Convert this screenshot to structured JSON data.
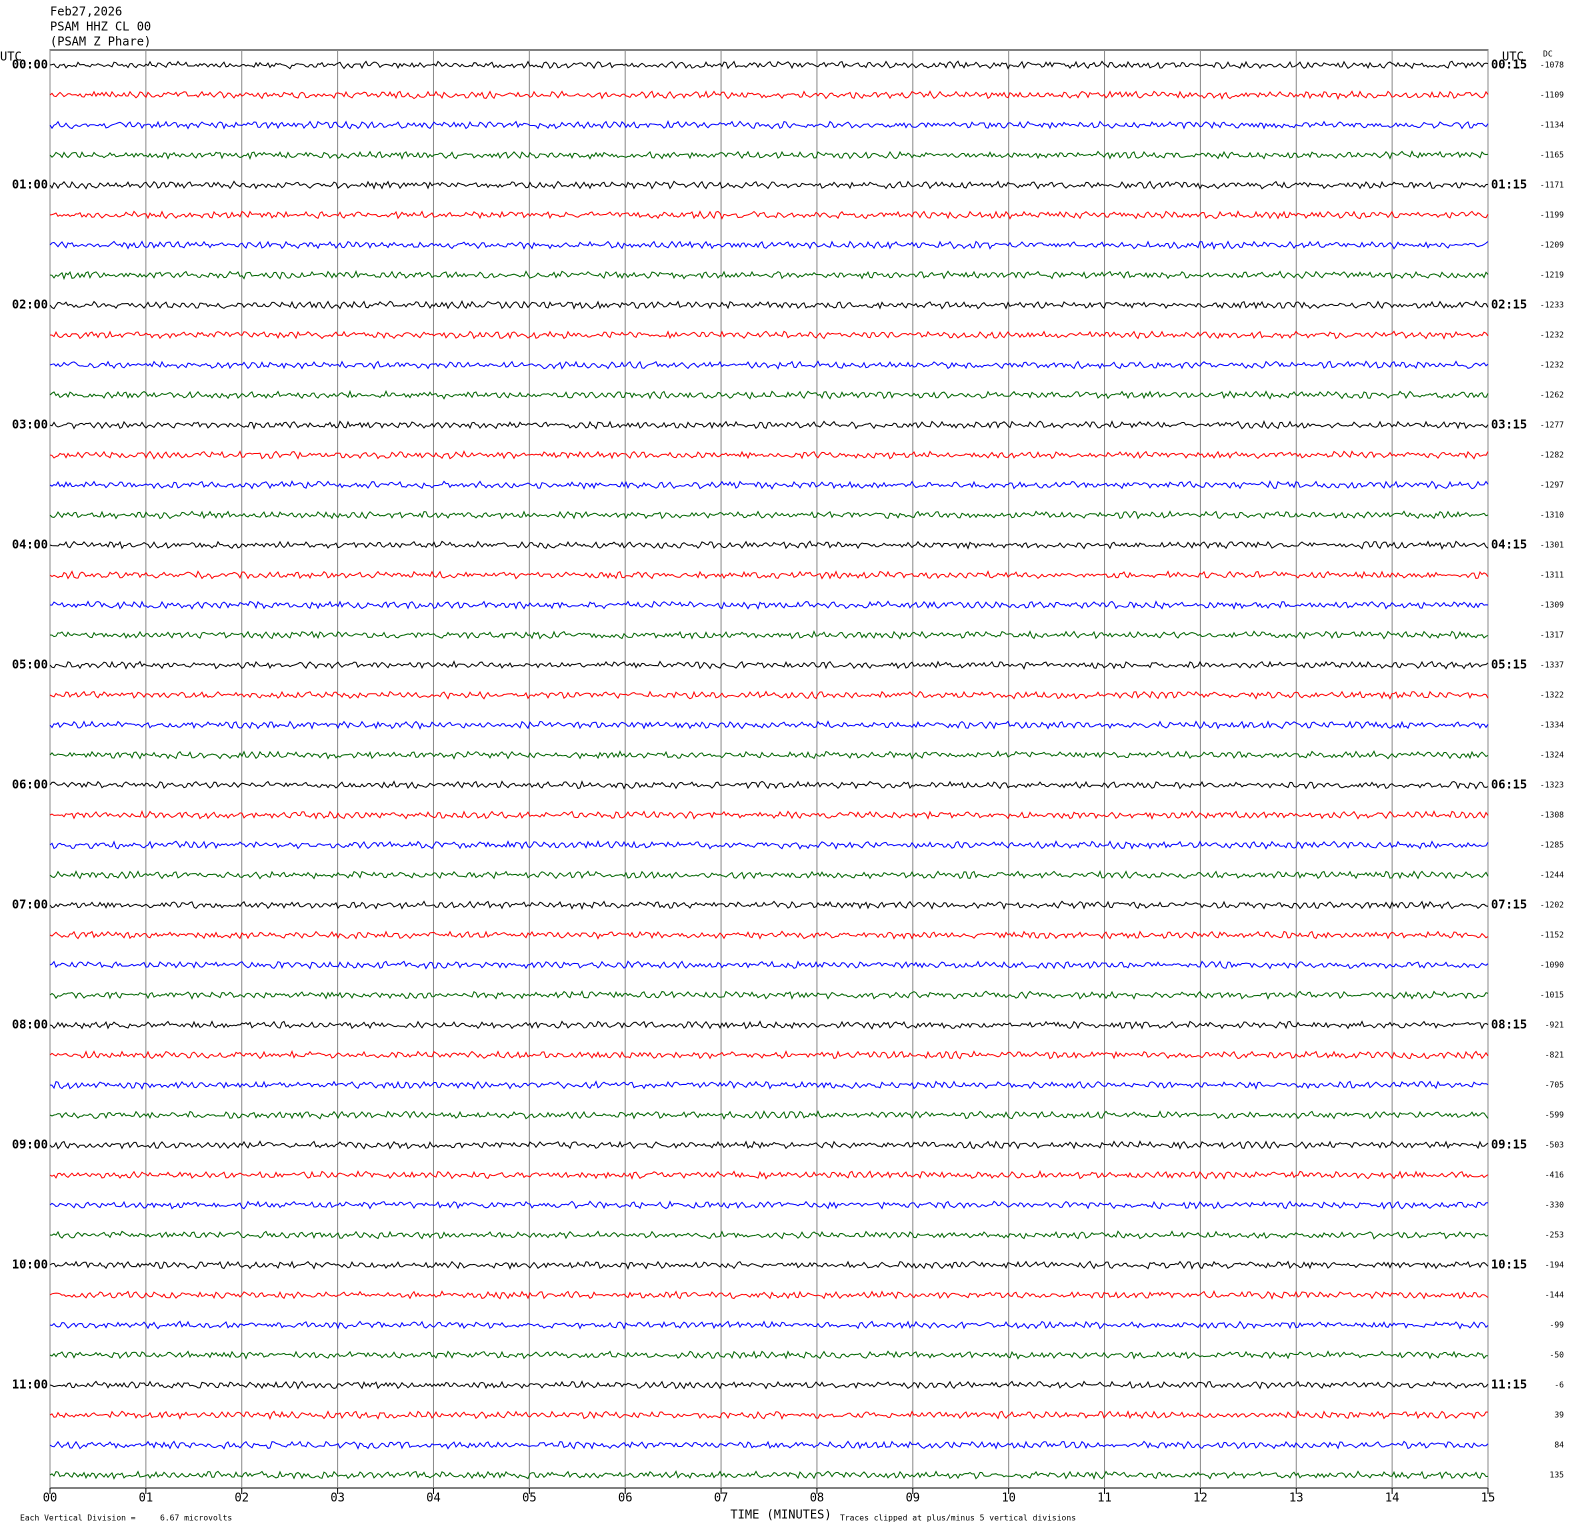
{
  "chart_data": {
    "type": "helicorder",
    "title_lines": [
      "Feb27,2026",
      "PSAM HHZ CL 00",
      "(PSAM Z Phare)"
    ],
    "left_axis_title": "UTC",
    "right_axis_title": "UTC",
    "dc_title": "DC",
    "left_labels": [
      "00:00",
      "01:00",
      "02:00",
      "03:00",
      "04:00",
      "05:00",
      "06:00",
      "07:00",
      "08:00",
      "09:00",
      "10:00",
      "11:00"
    ],
    "right_labels": [
      "00:15",
      "01:15",
      "02:15",
      "03:15",
      "04:15",
      "05:15",
      "06:15",
      "07:15",
      "08:15",
      "09:15",
      "10:15",
      "11:15"
    ],
    "dc_values": [
      -1078,
      -1109,
      -1134,
      -1165,
      -1171,
      -1199,
      -1209,
      -1219,
      -1233,
      -1232,
      -1232,
      -1262,
      -1277,
      -1282,
      -1297,
      -1310,
      -1301,
      -1311,
      -1309,
      -1317,
      -1337,
      -1322,
      -1334,
      -1324,
      -1323,
      -1308,
      -1285,
      -1244,
      -1202,
      -1152,
      -1090,
      -1015,
      -921,
      -821,
      -705,
      -599,
      -503,
      -416,
      -330,
      -253,
      -194,
      -144,
      -99,
      -50,
      -6,
      39,
      84,
      135
    ],
    "trace_colors": [
      "#000000",
      "#ff0000",
      "#0000ff",
      "#006400"
    ],
    "xlabel": "TIME (MINUTES)",
    "xlim": [
      0,
      15
    ],
    "xticks": [
      {
        "value": 0,
        "label": "00"
      },
      {
        "value": 1,
        "label": "01"
      },
      {
        "value": 2,
        "label": "02"
      },
      {
        "value": 3,
        "label": "03"
      },
      {
        "value": 4,
        "label": "04"
      },
      {
        "value": 5,
        "label": "05"
      },
      {
        "value": 6,
        "label": "06"
      },
      {
        "value": 7,
        "label": "07"
      },
      {
        "value": 8,
        "label": "08"
      },
      {
        "value": 9,
        "label": "09"
      },
      {
        "value": 10,
        "label": "10"
      },
      {
        "value": 11,
        "label": "11"
      },
      {
        "value": 12,
        "label": "12"
      },
      {
        "value": 13,
        "label": "13"
      },
      {
        "value": 14,
        "label": "14"
      },
      {
        "value": 15,
        "label": "15"
      }
    ],
    "grid": true,
    "footer_scale_label": "Each Vertical Division =",
    "footer_scale_value": "6.67 microvolts",
    "footer_clip_note": "Traces clipped at plus/minus 5 vertical divisions"
  }
}
